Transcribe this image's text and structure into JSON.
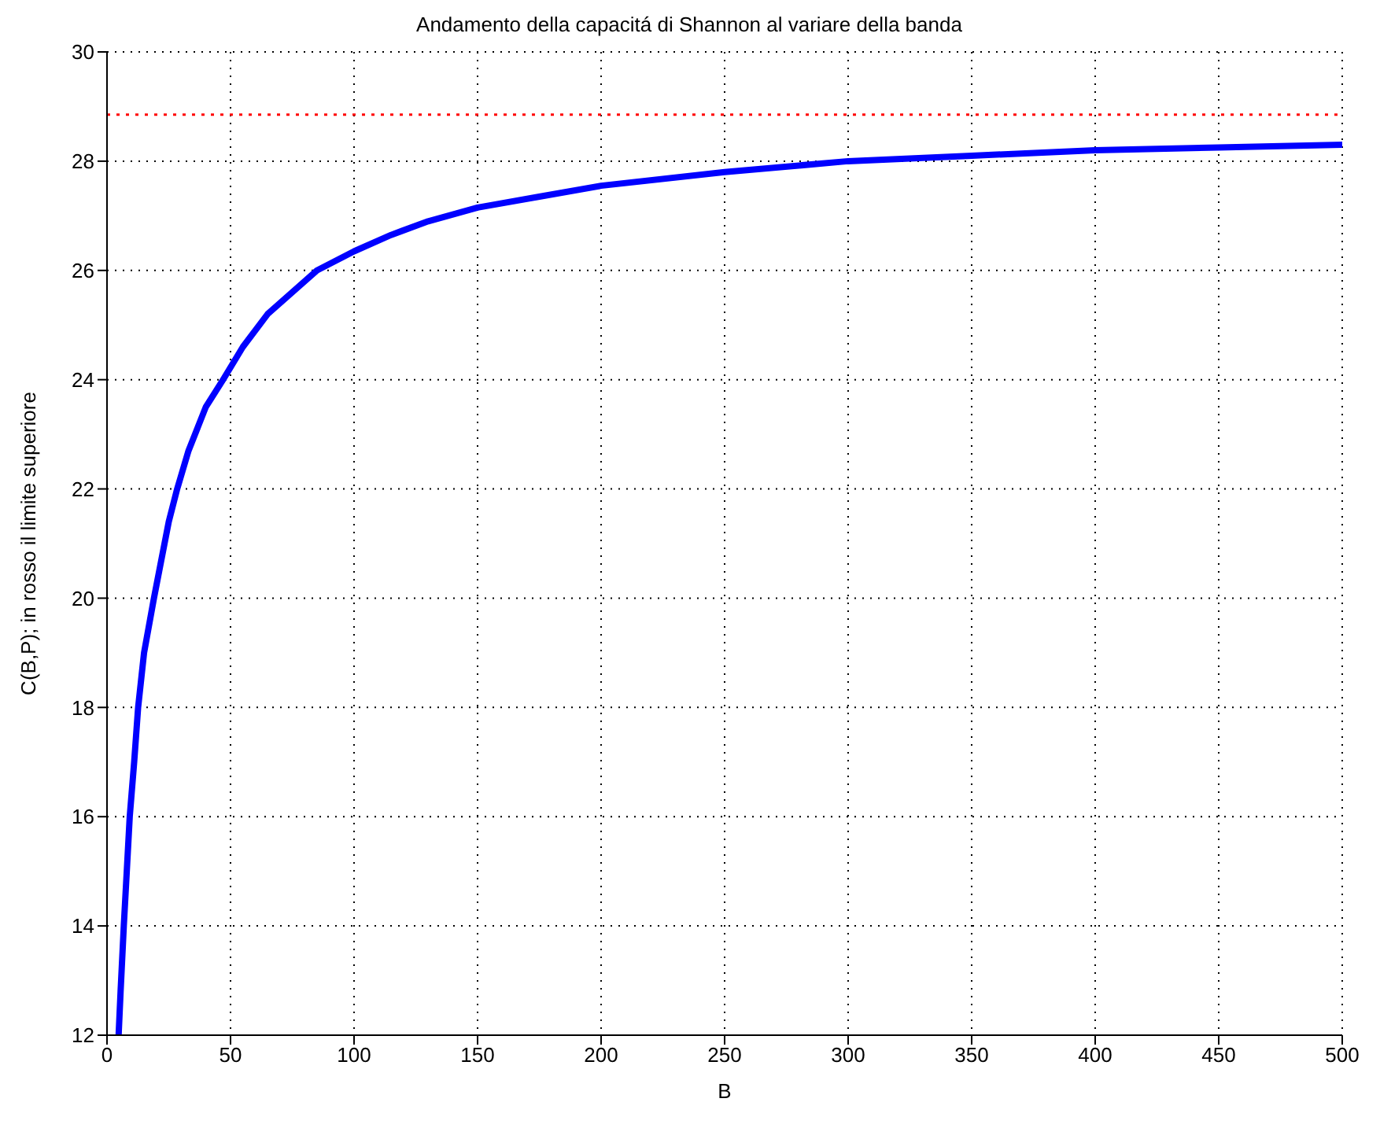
{
  "chart_data": {
    "type": "line",
    "title": "Andamento della capacitá di Shannon al variare della banda",
    "xlabel": "B",
    "ylabel": "C(B,P); in rosso il limite superiore",
    "x": [
      4.7,
      5.5,
      6.8,
      8,
      9.2,
      11,
      12.6,
      15,
      19,
      22,
      25,
      28.4,
      33,
      40,
      47,
      55,
      65,
      75,
      85,
      100,
      115,
      130,
      150,
      175,
      200,
      250,
      300,
      350,
      400,
      450,
      500
    ],
    "series": [
      {
        "color": "#0000ff",
        "values": [
          12,
          12.8,
          14,
          15,
          16,
          17,
          18,
          19,
          20,
          20.7,
          21.4,
          22,
          22.7,
          23.5,
          24,
          24.6,
          25.2,
          25.6,
          26,
          26.35,
          26.65,
          26.9,
          27.15,
          27.35,
          27.55,
          27.8,
          28.0,
          28.1,
          28.2,
          28.25,
          28.3
        ]
      }
    ],
    "xlim": [
      0,
      500
    ],
    "xticks": [
      0,
      50,
      100,
      150,
      200,
      250,
      300,
      350,
      400,
      450,
      500
    ],
    "ylim": [
      12,
      30
    ],
    "yticks": [
      12,
      14,
      16,
      18,
      20,
      22,
      24,
      26,
      28,
      30
    ],
    "ref_lines": [
      {
        "axis": "y",
        "value": 28.85,
        "color": "#ff0000",
        "line_style": "dotted"
      }
    ],
    "grid": true,
    "line_style": "solid",
    "marker": "none"
  }
}
